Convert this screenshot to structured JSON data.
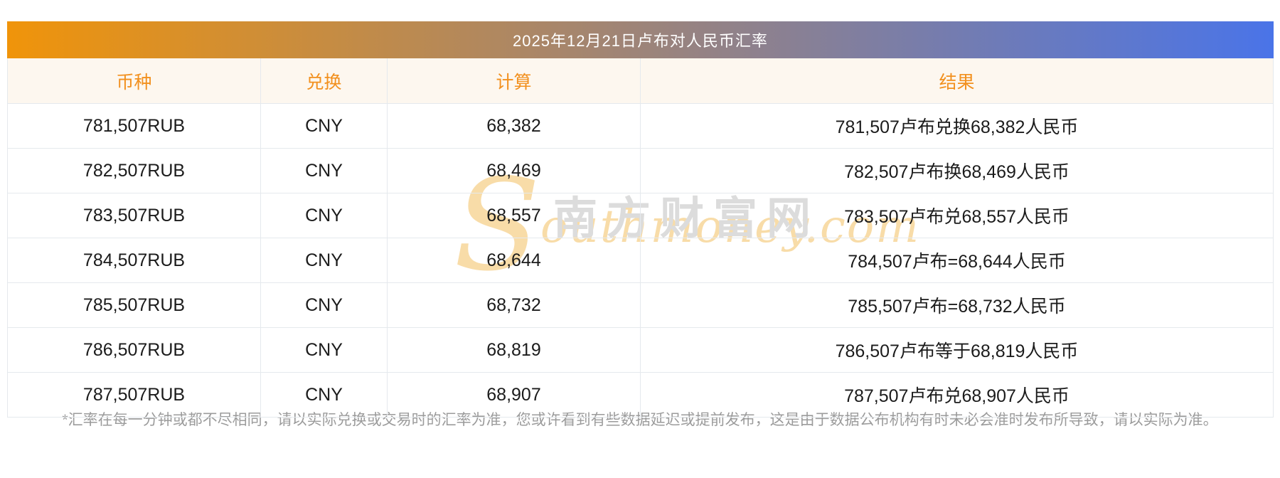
{
  "title_bar": {
    "title": "2025年12月21日卢布对人民币汇率"
  },
  "colors": {
    "gradient_start": "#F0940A",
    "gradient_end": "#4A74E8",
    "title_text": "#FFFFFF",
    "header_bg": "#FDF7EF",
    "header_text": "#F2901E",
    "cell_text": "#1B1B1B",
    "row_border": "#E5E9ED",
    "footer_text": "#9B9B9B",
    "watermark_gray": "#DCDCDC",
    "watermark_peach": "#F8DCA8"
  },
  "table": {
    "columns": [
      "币种",
      "兑换",
      "计算",
      "结果"
    ],
    "rows": [
      {
        "currency": "781,507RUB",
        "exchange": "CNY",
        "calc": "68,382",
        "result": "781,507卢布兑换68,382人民币"
      },
      {
        "currency": "782,507RUB",
        "exchange": "CNY",
        "calc": "68,469",
        "result": "782,507卢布换68,469人民币"
      },
      {
        "currency": "783,507RUB",
        "exchange": "CNY",
        "calc": "68,557",
        "result": "783,507卢布兑68,557人民币"
      },
      {
        "currency": "784,507RUB",
        "exchange": "CNY",
        "calc": "68,644",
        "result": "784,507卢布=68,644人民币"
      },
      {
        "currency": "785,507RUB",
        "exchange": "CNY",
        "calc": "68,732",
        "result": "785,507卢布=68,732人民币"
      },
      {
        "currency": "786,507RUB",
        "exchange": "CNY",
        "calc": "68,819",
        "result": "786,507卢布等于68,819人民币"
      },
      {
        "currency": "787,507RUB",
        "exchange": "CNY",
        "calc": "68,907",
        "result": "787,507卢布兑68,907人民币"
      }
    ]
  },
  "watermark": {
    "s_initial": "S",
    "latin_rest": "outhmoney.com",
    "cjk": "南方财富网"
  },
  "footer": {
    "note": "*汇率在每一分钟或都不尽相同，请以实际兑换或交易时的汇率为准，您或许看到有些数据延迟或提前发布，这是由于数据公布机构有时未必会准时发布所导致，请以实际为准。"
  }
}
